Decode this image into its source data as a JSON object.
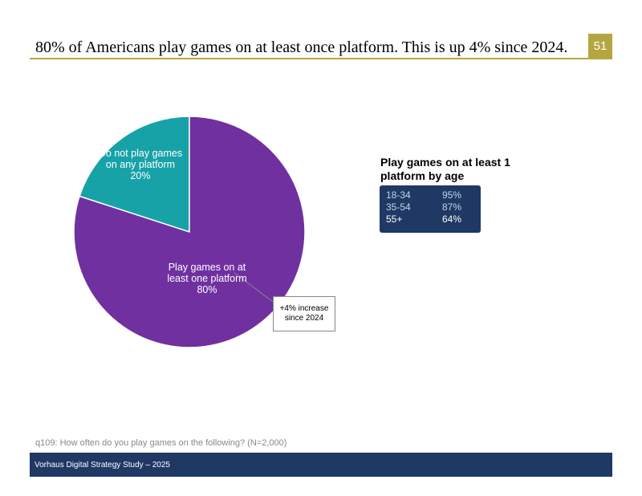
{
  "header": {
    "title": "80% of Americans play games on at least once platform. This is up 4% since 2024.",
    "page_number": "51"
  },
  "chart_data": {
    "type": "pie",
    "categories": [
      "Play games on at least one platform",
      "Do not play games on any platform"
    ],
    "values": [
      80,
      20
    ],
    "value_labels": [
      "80%",
      "20%"
    ],
    "colors": [
      "#7030a0",
      "#17a2a8"
    ],
    "annotation": "+4% increase since 2024"
  },
  "table": {
    "title": "Play games on at least 1 platform by age",
    "rows": [
      [
        "18-34",
        "95%"
      ],
      [
        "35-54",
        "87%"
      ],
      [
        "55+",
        "64%"
      ]
    ]
  },
  "footnote": "q109: How often do you play games on the following? (N=2,000)",
  "footer": "Vorhaus Digital Strategy Study – 2025"
}
